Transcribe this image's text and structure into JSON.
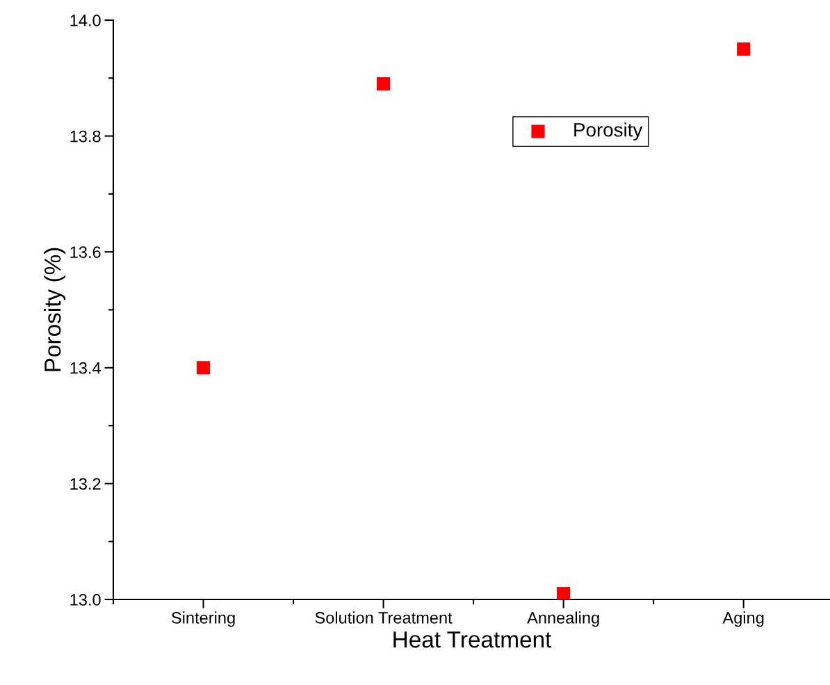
{
  "chart_data": {
    "type": "scatter",
    "xlabel": "Heat Treatment",
    "ylabel": "Porosity (%)",
    "categories": [
      "Sintering",
      "Solution Treatment",
      "Annealing",
      "Aging"
    ],
    "series": [
      {
        "name": "Porosity",
        "color": "#ff0000",
        "values": [
          13.4,
          13.89,
          13.01,
          13.95
        ]
      }
    ],
    "ylim": [
      13.0,
      14.0
    ],
    "yticks": [
      {
        "value": 13.0,
        "label": "13.0"
      },
      {
        "value": 13.2,
        "label": "13.2"
      },
      {
        "value": 13.4,
        "label": "13.4"
      },
      {
        "value": 13.6,
        "label": "13.6"
      },
      {
        "value": 13.8,
        "label": "13.8"
      },
      {
        "value": 14.0,
        "label": "14.0"
      }
    ],
    "marker": "square",
    "legend": "top right",
    "grid": false
  }
}
